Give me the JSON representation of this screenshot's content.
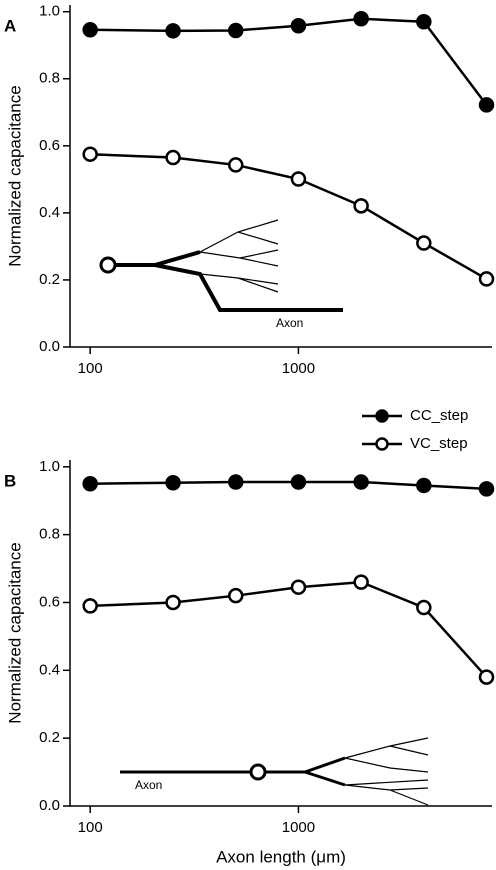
{
  "chart_data": [
    {
      "type": "line",
      "panel": "A",
      "ylabel": "Normalized capacitance",
      "annotation": "Axon",
      "log_x": true,
      "xlim": [
        80,
        8500
      ],
      "xticks": [
        100,
        1000
      ],
      "ylim": [
        0,
        1.02
      ],
      "yticks": [
        {
          "value": 0,
          "label": "0.0"
        },
        0.2,
        0.4,
        0.6,
        0.8,
        {
          "value": 1,
          "label": "1.0"
        }
      ],
      "x": [
        100,
        250,
        500,
        1000,
        2000,
        4000,
        8000
      ],
      "series": [
        {
          "marker": "filled",
          "color": "#000000",
          "values": [
            0.946,
            0.943,
            0.944,
            0.958,
            0.979,
            0.97,
            0.722
          ]
        },
        {
          "marker": "open",
          "color": "#000000",
          "values": [
            0.575,
            0.565,
            0.543,
            0.501,
            0.421,
            0.31,
            0.203
          ]
        }
      ]
    },
    {
      "type": "line",
      "panel": "B",
      "ylabel": "Normalized capacitance",
      "xlabel": "Axon length (μm)",
      "annotation": "Axon",
      "log_x": true,
      "xlim": [
        80,
        8500
      ],
      "xticks": [
        100,
        1000
      ],
      "ylim": [
        0,
        1.02
      ],
      "yticks": [
        {
          "value": 0,
          "label": "0.0"
        },
        0.2,
        0.4,
        0.6,
        0.8,
        {
          "value": 1,
          "label": "1.0"
        }
      ],
      "x": [
        100,
        250,
        500,
        1000,
        2000,
        4000,
        8000
      ],
      "legend": "top-right",
      "series": [
        {
          "name": "CC_step",
          "marker": "filled",
          "color": "#000000",
          "values": [
            0.95,
            0.953,
            0.955,
            0.955,
            0.955,
            0.945,
            0.935
          ]
        },
        {
          "name": "VC_step",
          "marker": "open",
          "color": "#000000",
          "values": [
            0.59,
            0.6,
            0.62,
            0.645,
            0.66,
            0.585,
            0.38
          ]
        }
      ]
    }
  ]
}
